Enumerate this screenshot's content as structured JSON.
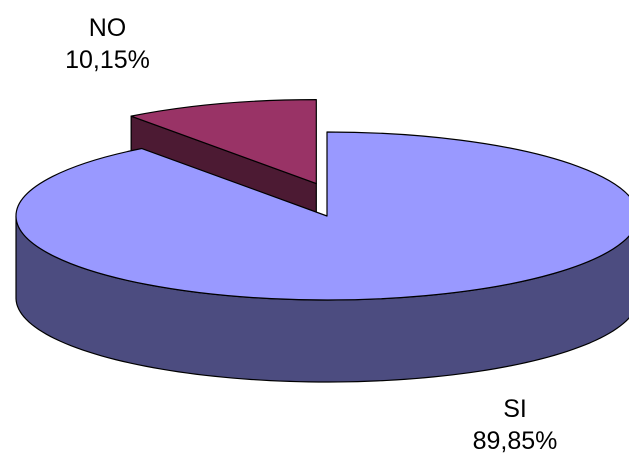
{
  "chart_data": {
    "type": "pie",
    "style": "3d-exploded",
    "title": "",
    "slices": [
      {
        "label": "SI",
        "value_label": "89,85%",
        "value": 89.85,
        "top_color": "#9999ff",
        "side_color": "#4c4c80"
      },
      {
        "label": "NO",
        "value_label": "10,15%",
        "value": 10.15,
        "top_color": "#993366",
        "side_color": "#4c1a33"
      }
    ],
    "exploded_slice": "NO",
    "legend": "none"
  }
}
